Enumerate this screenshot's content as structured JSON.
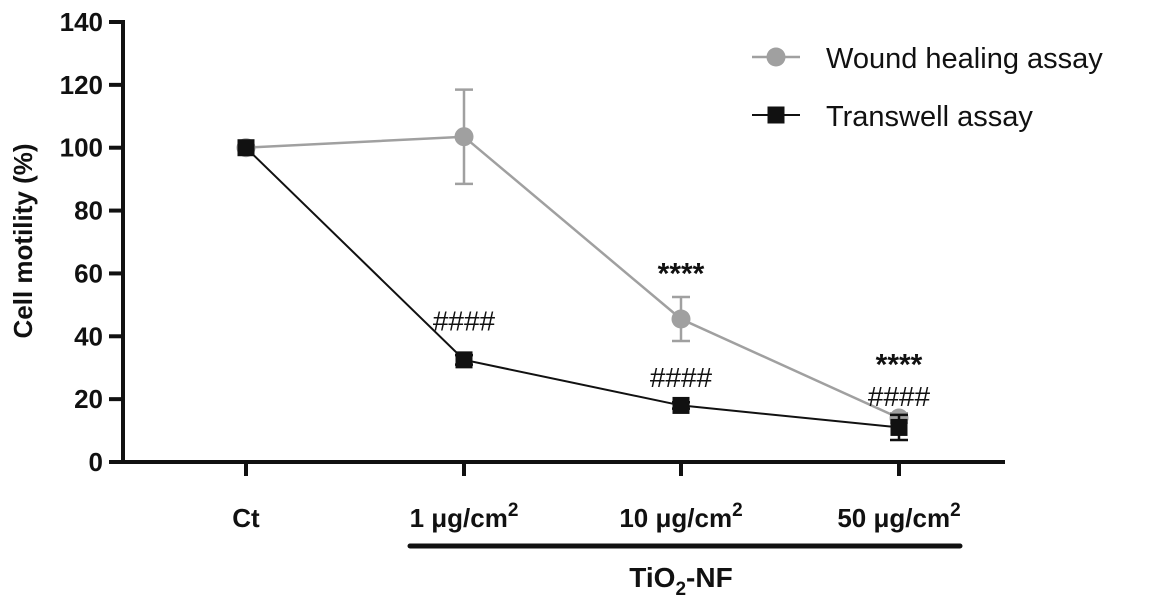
{
  "chart_data": {
    "type": "line",
    "ylabel": "Cell motility (%)",
    "ylim": [
      0,
      140
    ],
    "yticks": [
      "0",
      "20",
      "40",
      "60",
      "80",
      "100",
      "120",
      "140"
    ],
    "categories": [
      {
        "main": "Ct",
        "sup": ""
      },
      {
        "main": "1 μg/cm",
        "sup": "2"
      },
      {
        "main": "10 μg/cm",
        "sup": "2"
      },
      {
        "main": "50 μg/cm",
        "sup": "2"
      }
    ],
    "group_label": {
      "main": "TiO",
      "sub": "2",
      "rest": "-NF"
    },
    "legend_position": "top-right",
    "series": [
      {
        "name": "Wound healing assay",
        "marker": "circle",
        "color": "#a0a0a0",
        "values": [
          100,
          103.5,
          45.5,
          14
        ],
        "error": [
          0,
          15,
          7,
          1.5
        ]
      },
      {
        "name": "Transwell assay",
        "marker": "square",
        "color": "#111111",
        "values": [
          100,
          32.5,
          18,
          11
        ],
        "error": [
          0,
          1.5,
          1,
          4
        ]
      }
    ],
    "annotations": [
      {
        "text": "####",
        "category": 1,
        "y": 45,
        "style": "hash"
      },
      {
        "text": "****",
        "category": 2,
        "y": 60,
        "style": "star"
      },
      {
        "text": "####",
        "category": 2,
        "y": 27,
        "style": "hash"
      },
      {
        "text": "****",
        "category": 3,
        "y": 31,
        "style": "star"
      },
      {
        "text": "####",
        "category": 3,
        "y": 21,
        "style": "hash"
      }
    ]
  }
}
